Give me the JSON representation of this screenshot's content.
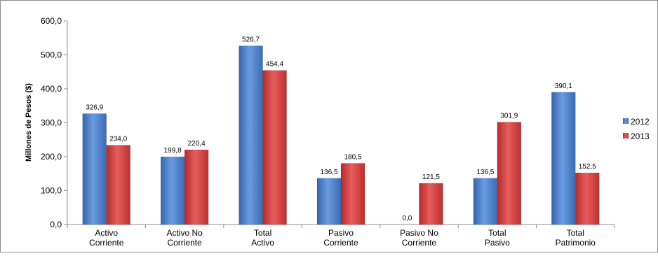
{
  "chart_data": {
    "type": "bar",
    "categories": [
      [
        "Activo",
        "Corriente"
      ],
      [
        "Activo No",
        "Corriente"
      ],
      [
        "Total",
        "Activo"
      ],
      [
        "Pasivo",
        "Corriente"
      ],
      [
        "Pasivo No",
        "Corriente"
      ],
      [
        "Total",
        "Pasivo"
      ],
      [
        "Total",
        "Patrimonio"
      ]
    ],
    "series": [
      {
        "name": "2012",
        "color": "#4a7fc8",
        "values": [
          326.9,
          199.8,
          526.7,
          136.5,
          0.0,
          136.5,
          390.1
        ],
        "labels": [
          "326,9",
          "199,8",
          "526,7",
          "136,5",
          "0,0",
          "136,5",
          "390,1"
        ]
      },
      {
        "name": "2013",
        "color": "#d0393a",
        "values": [
          234.0,
          220.4,
          454.4,
          180.5,
          121.5,
          301.9,
          152.5
        ],
        "labels": [
          "234,0",
          "220,4",
          "454,4",
          "180,5",
          "121,5",
          "301,9",
          "152,5"
        ]
      }
    ],
    "ylabel": "Millones de Pesos ($)",
    "xlabel": "",
    "title": "",
    "ylim": [
      0,
      600
    ],
    "yticks": [
      0,
      100,
      200,
      300,
      400,
      500,
      600
    ],
    "ytick_labels": [
      "0,0",
      "100,0",
      "200,0",
      "300,0",
      "400,0",
      "500,0",
      "600,0"
    ],
    "grid": false,
    "legend_position": "right"
  }
}
